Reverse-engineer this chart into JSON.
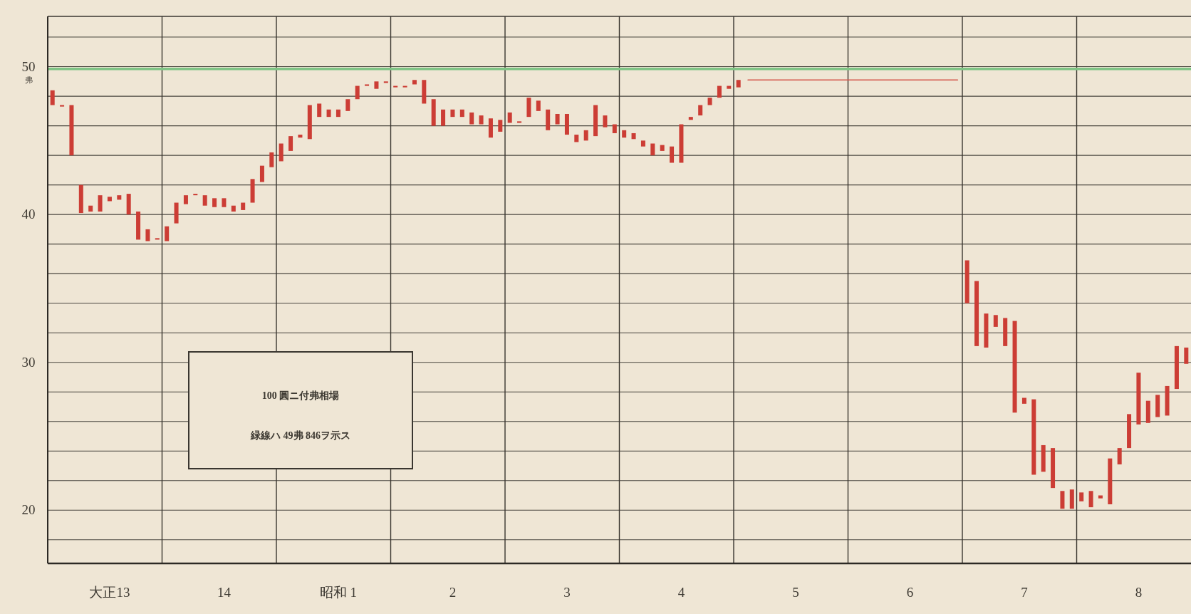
{
  "chart_data": {
    "type": "bar",
    "ylabel": "弗",
    "categories": [
      null,
      null,
      null,
      null,
      null,
      null,
      "大正13",
      null,
      null,
      null,
      null,
      null,
      null,
      null,
      null,
      null,
      null,
      null,
      "14",
      null,
      null,
      null,
      null,
      null,
      null,
      null,
      null,
      null,
      null,
      null,
      "昭和 1",
      null,
      null,
      null,
      null,
      null,
      null,
      null,
      null,
      null,
      null,
      null,
      "2",
      null,
      null,
      null,
      null,
      null,
      null,
      null,
      null,
      null,
      null,
      null,
      "3",
      null,
      null,
      null,
      null,
      null,
      null,
      null,
      null,
      null,
      null,
      null,
      "4",
      null,
      null,
      null,
      null,
      null,
      null,
      null,
      null,
      null,
      null,
      null,
      "5",
      null,
      null,
      null,
      null,
      null,
      null,
      null,
      null,
      null,
      null,
      null,
      "6",
      null,
      null,
      null,
      null,
      null,
      null,
      null,
      null,
      null,
      null,
      null,
      "7",
      null,
      null,
      null,
      null,
      null,
      null,
      null,
      null,
      null,
      null,
      null,
      "8",
      null,
      null,
      null,
      null,
      null
    ],
    "ylim": [
      16.4,
      53.4
    ],
    "yticks": [
      {
        "value": 18,
        "label": null
      },
      20,
      {
        "value": 22,
        "label": null
      },
      {
        "value": 24,
        "label": null
      },
      {
        "value": 26,
        "label": null
      },
      {
        "value": 28,
        "label": null
      },
      30,
      {
        "value": 32,
        "label": null
      },
      {
        "value": 34,
        "label": null
      },
      {
        "value": 36,
        "label": null
      },
      {
        "value": 38,
        "label": null
      },
      40,
      {
        "value": 42,
        "label": null
      },
      {
        "value": 44,
        "label": null
      },
      {
        "value": 46,
        "label": null
      },
      {
        "value": 48,
        "label": null
      },
      50,
      {
        "value": 52,
        "label": null
      }
    ],
    "grid": true,
    "ref_lines": [
      {
        "axis": "y",
        "value": 49.846,
        "color": "#7fc485"
      }
    ],
    "annotations": [
      "100 圓ニ付弗相場",
      "緑線ハ 49弗 846ヲ示ス"
    ],
    "series": [
      {
        "color": "#cc3d35",
        "base": [
          47.4,
          47.3,
          44.0,
          40.1,
          40.2,
          40.2,
          40.9,
          41.0,
          40.0,
          38.3,
          38.2,
          38.3,
          38.2,
          39.4,
          40.7,
          41.3,
          40.6,
          40.5,
          40.5,
          40.2,
          40.3,
          40.8,
          42.2,
          43.2,
          43.6,
          44.3,
          45.2,
          45.1,
          46.6,
          46.6,
          46.6,
          47.0,
          47.8,
          48.7,
          48.5,
          48.9,
          48.6,
          48.6,
          48.8,
          47.5,
          46.0,
          46.0,
          46.6,
          46.6,
          46.1,
          46.1,
          45.2,
          45.6,
          46.2,
          46.2,
          46.6,
          47.0,
          45.7,
          46.1,
          45.4,
          44.9,
          45.0,
          45.3,
          45.9,
          45.5,
          45.2,
          45.1,
          44.6,
          44.0,
          44.3,
          43.5,
          43.5,
          46.4,
          46.7,
          47.4,
          47.9,
          48.5,
          48.6,
          null,
          null,
          null,
          null,
          null,
          null,
          null,
          null,
          null,
          null,
          null,
          null,
          null,
          null,
          null,
          null,
          null,
          null,
          null,
          null,
          null,
          null,
          null,
          34.0,
          31.1,
          31.0,
          32.4,
          31.1,
          26.6,
          27.2,
          22.4,
          22.6,
          21.5,
          20.1,
          20.1,
          20.6,
          20.2,
          20.8,
          20.4,
          23.1,
          24.2,
          25.8,
          25.9,
          26.3,
          26.4,
          28.2,
          29.9
        ],
        "values": [
          1.0,
          0.1,
          3.4,
          1.9,
          0.4,
          1.1,
          0.3,
          0.3,
          1.4,
          1.9,
          0.8,
          0.1,
          1.0,
          1.4,
          0.6,
          0.1,
          0.7,
          0.6,
          0.6,
          0.4,
          0.5,
          1.6,
          1.1,
          1.0,
          1.2,
          1.0,
          0.2,
          2.3,
          0.9,
          0.5,
          0.5,
          0.8,
          0.9,
          0.1,
          0.5,
          0.1,
          0.1,
          0.1,
          0.3,
          1.6,
          1.8,
          1.1,
          0.5,
          0.5,
          0.8,
          0.6,
          1.3,
          0.8,
          0.7,
          0.1,
          1.3,
          0.7,
          1.4,
          0.7,
          1.4,
          0.5,
          0.7,
          2.1,
          0.8,
          0.6,
          0.5,
          0.4,
          0.4,
          0.8,
          0.4,
          1.1,
          2.6,
          0.2,
          0.7,
          0.5,
          0.8,
          0.2,
          0.5,
          null,
          null,
          null,
          null,
          null,
          null,
          null,
          null,
          null,
          null,
          null,
          null,
          null,
          null,
          null,
          null,
          null,
          null,
          null,
          null,
          null,
          null,
          null,
          2.9,
          4.4,
          2.3,
          0.8,
          1.9,
          6.2,
          0.4,
          5.1,
          1.8,
          2.7,
          1.2,
          1.3,
          0.6,
          1.1,
          0.2,
          3.1,
          1.1,
          2.3,
          3.5,
          1.5,
          1.5,
          2.0,
          2.9,
          1.1
        ]
      },
      {
        "type": "line",
        "color": "#d4574c",
        "values": [
          null,
          null,
          null,
          null,
          null,
          null,
          null,
          null,
          null,
          null,
          null,
          null,
          null,
          null,
          null,
          null,
          null,
          null,
          null,
          null,
          null,
          null,
          null,
          null,
          null,
          null,
          null,
          null,
          null,
          null,
          null,
          null,
          null,
          null,
          null,
          null,
          null,
          null,
          null,
          null,
          null,
          null,
          null,
          null,
          null,
          null,
          null,
          null,
          null,
          null,
          null,
          null,
          null,
          null,
          null,
          null,
          null,
          null,
          null,
          null,
          null,
          null,
          null,
          null,
          null,
          null,
          null,
          null,
          null,
          null,
          null,
          null,
          null,
          49.1,
          49.1,
          49.1,
          49.1,
          49.1,
          49.1,
          49.1,
          49.1,
          49.1,
          49.1,
          49.1,
          49.1,
          49.1,
          49.1,
          49.1,
          49.1,
          49.1,
          49.1,
          49.1,
          49.1,
          49.1,
          49.1,
          49.1,
          null,
          null,
          null,
          null,
          null,
          null,
          null,
          null,
          null,
          null,
          null,
          null,
          null,
          null,
          null,
          null,
          null,
          null,
          null,
          null,
          null,
          null,
          null,
          null
        ]
      }
    ]
  }
}
